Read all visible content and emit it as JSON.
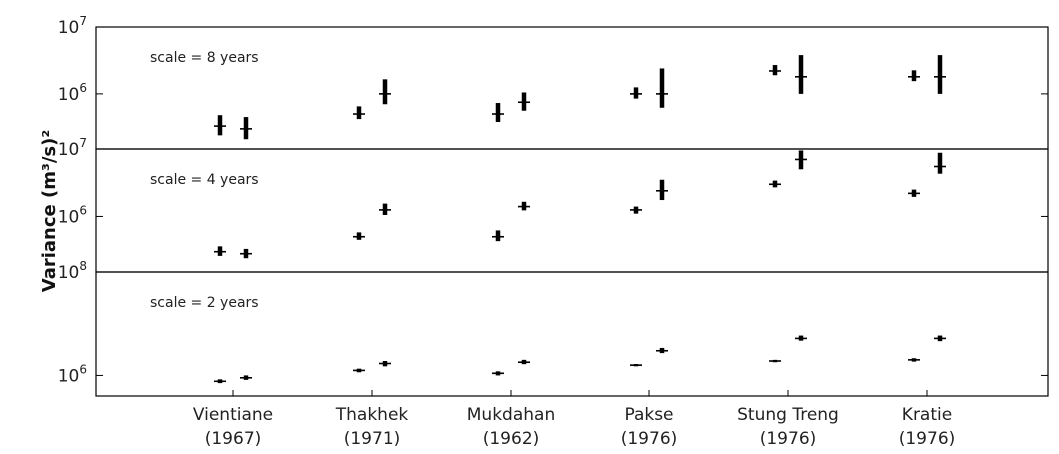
{
  "chart_data": {
    "type": "errorbar",
    "ylabel": "Variance (m³/s)²",
    "categories": [
      {
        "name": "Vientiane",
        "year": "(1967)"
      },
      {
        "name": "Thakhek",
        "year": "(1971)"
      },
      {
        "name": "Mukdahan",
        "year": "(1962)"
      },
      {
        "name": "Pakse",
        "year": "(1976)"
      },
      {
        "name": "Stung Treng",
        "year": "(1976)"
      },
      {
        "name": "Kratie",
        "year": "(1976)"
      }
    ],
    "panels": [
      {
        "annotation": "scale = 8 years",
        "yscale": "log",
        "ylim": [
          150000,
          10000000
        ],
        "yticks": [
          {
            "value": 10000000,
            "base": "10",
            "exp": "7"
          },
          {
            "value": 1000000,
            "base": "10",
            "exp": "6"
          }
        ],
        "bars": [
          [
            {
              "center": 330000,
              "low": 240000,
              "high": 480000
            },
            {
              "center": 300000,
              "low": 210000,
              "high": 450000
            }
          ],
          [
            {
              "center": 500000,
              "low": 420000,
              "high": 650000
            },
            {
              "center": 1000000,
              "low": 700000,
              "high": 1650000
            }
          ],
          [
            {
              "center": 500000,
              "low": 380000,
              "high": 730000
            },
            {
              "center": 750000,
              "low": 560000,
              "high": 1050000
            }
          ],
          [
            {
              "center": 1000000,
              "low": 850000,
              "high": 1250000
            },
            {
              "center": 1000000,
              "low": 620000,
              "high": 2400000
            }
          ],
          [
            {
              "center": 2200000,
              "low": 1900000,
              "high": 2700000
            },
            {
              "center": 1800000,
              "low": 1000000,
              "high": 3800000
            }
          ],
          [
            {
              "center": 1800000,
              "low": 1550000,
              "high": 2250000
            },
            {
              "center": 1800000,
              "low": 1000000,
              "high": 3800000
            }
          ]
        ]
      },
      {
        "annotation": "scale = 4 years",
        "yscale": "log",
        "ylim": [
          150000,
          10000000
        ],
        "yticks": [
          {
            "value": 10000000,
            "base": "10",
            "exp": "7"
          },
          {
            "value": 1000000,
            "base": "10",
            "exp": "6"
          }
        ],
        "bars": [
          [
            {
              "center": 300000,
              "low": 260000,
              "high": 360000
            },
            {
              "center": 280000,
              "low": 240000,
              "high": 330000
            }
          ],
          [
            {
              "center": 500000,
              "low": 450000,
              "high": 580000
            },
            {
              "center": 1250000,
              "low": 1050000,
              "high": 1550000
            }
          ],
          [
            {
              "center": 500000,
              "low": 430000,
              "high": 620000
            },
            {
              "center": 1400000,
              "low": 1230000,
              "high": 1650000
            }
          ],
          [
            {
              "center": 1250000,
              "low": 1100000,
              "high": 1400000
            },
            {
              "center": 2400000,
              "low": 1750000,
              "high": 3500000
            }
          ],
          [
            {
              "center": 3000000,
              "low": 2700000,
              "high": 3400000
            },
            {
              "center": 7000000,
              "low": 5000000,
              "high": 9500000
            }
          ],
          [
            {
              "center": 2200000,
              "low": 1950000,
              "high": 2500000
            },
            {
              "center": 5500000,
              "low": 4300000,
              "high": 8800000
            }
          ]
        ]
      },
      {
        "annotation": "scale = 2 years",
        "yscale": "log",
        "ylim": [
          400000,
          100000000
        ],
        "yticks": [
          {
            "value": 100000000,
            "base": "10",
            "exp": "8"
          },
          {
            "value": 1000000,
            "base": "10",
            "exp": "6"
          }
        ],
        "bars": [
          [
            {
              "center": 770000,
              "low": 710000,
              "high": 840000
            },
            {
              "center": 900000,
              "low": 820000,
              "high": 1000000
            }
          ],
          [
            {
              "center": 1250000,
              "low": 1150000,
              "high": 1350000
            },
            {
              "center": 1700000,
              "low": 1500000,
              "high": 1900000
            }
          ],
          [
            {
              "center": 1100000,
              "low": 1000000,
              "high": 1200000
            },
            {
              "center": 1800000,
              "low": 1650000,
              "high": 2000000
            }
          ],
          [
            {
              "center": 1580000,
              "low": 1500000,
              "high": 1660000
            },
            {
              "center": 3000000,
              "low": 2700000,
              "high": 3400000
            }
          ],
          [
            {
              "center": 1900000,
              "low": 1800000,
              "high": 2000000
            },
            {
              "center": 5200000,
              "low": 4700000,
              "high": 5900000
            }
          ],
          [
            {
              "center": 2000000,
              "low": 1850000,
              "high": 2150000
            },
            {
              "center": 5200000,
              "low": 4600000,
              "high": 5900000
            }
          ]
        ]
      }
    ]
  }
}
